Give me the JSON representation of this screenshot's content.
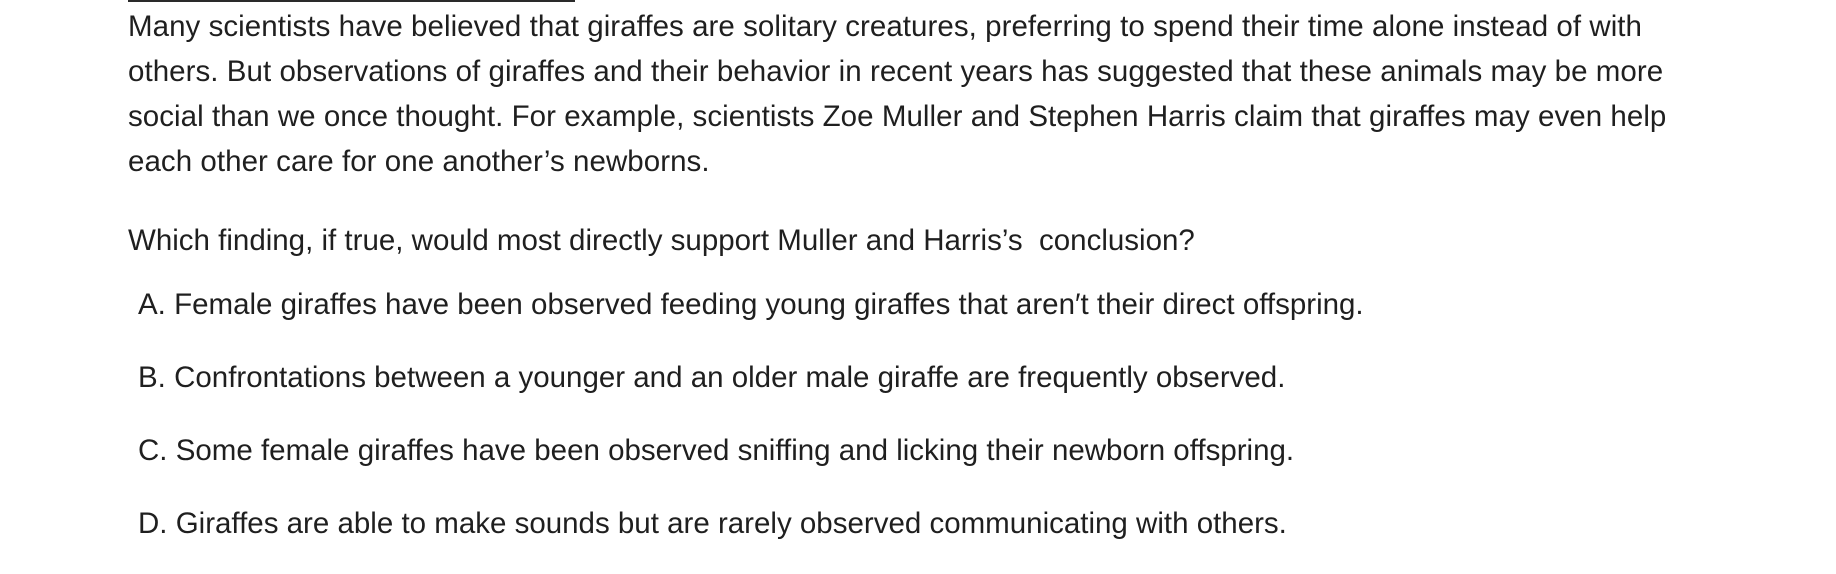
{
  "passage": "Many scientists have believed that giraffes are solitary creatures, preferring to spend their time alone instead of with others. But observations of giraffes and their behavior in recent years has suggested that these animals may be more social than we once thought. For example, scientists Zoe Muller and Stephen Harris claim that giraffes may even help each other care for one another’s newborns.",
  "question": "Which finding, if true, would most directly support Muller and Harris’s  conclusion?",
  "choices": [
    {
      "letter": "A.",
      "text": "Female giraffes have been observed feeding young giraffes that aren′t their direct offspring."
    },
    {
      "letter": "B.",
      "text": "Confrontations between a younger and an older male giraffe are frequently observed."
    },
    {
      "letter": "C.",
      "text": "Some female giraffes have been observed sniffing and licking their newborn offspring."
    },
    {
      "letter": "D.",
      "text": "Giraffes are able to make sounds but are rarely observed communicating with others."
    }
  ]
}
